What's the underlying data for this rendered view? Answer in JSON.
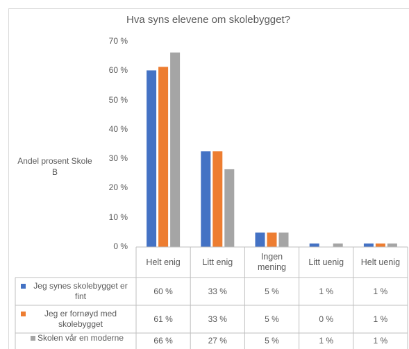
{
  "chart_data": {
    "type": "bar",
    "title": "Hva syns elevene om skolebygget?",
    "y_label": "Andel prosent Skole B",
    "categories": [
      "Helt enig",
      "Litt enig",
      "Ingen mening",
      "Litt uenig",
      "Helt uenig"
    ],
    "series": [
      {
        "name": "Jeg synes skolebygget er fint",
        "color": "#4472c4",
        "values": [
          60.2,
          32.6,
          4.9,
          1.2,
          1.2
        ],
        "value_labels": [
          "60 %",
          "33 %",
          "5 %",
          "1 %",
          "1 %"
        ]
      },
      {
        "name": "Jeg er fornøyd med skolebygget",
        "color": "#ed7d31",
        "values": [
          61.4,
          32.6,
          4.9,
          0,
          1.2
        ],
        "value_labels": [
          "61 %",
          "33 %",
          "5 %",
          "0 %",
          "1 %"
        ]
      },
      {
        "name": "Skolen vår en moderne",
        "color": "#a5a5a5",
        "values": [
          66.3,
          26.5,
          4.9,
          1.2,
          1.2
        ],
        "value_labels": [
          "66 %",
          "27 %",
          "5 %",
          "1 %",
          "1 %"
        ]
      }
    ],
    "ylim": [
      0,
      70
    ],
    "yticks": [
      {
        "value": 0,
        "label": "0 %"
      },
      {
        "value": 10,
        "label": "10 %"
      },
      {
        "value": 20,
        "label": "20 %"
      },
      {
        "value": 30,
        "label": "30 %"
      },
      {
        "value": 40,
        "label": "40 %"
      },
      {
        "value": 50,
        "label": "50 %"
      },
      {
        "value": 60,
        "label": "60 %"
      },
      {
        "value": 70,
        "label": "70 %"
      }
    ],
    "grid": false
  }
}
